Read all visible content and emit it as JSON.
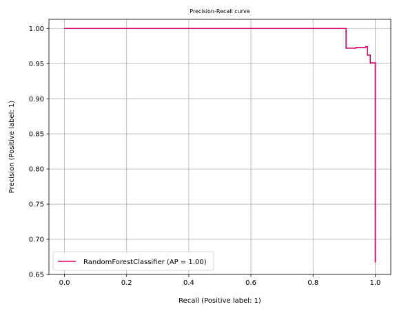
{
  "chart_data": {
    "type": "line",
    "title": "Precision-Recall curve",
    "xlabel": "Recall (Positive label: 1)",
    "ylabel": "Precision (Positive label: 1)",
    "xlim": [
      -0.05,
      1.05
    ],
    "ylim": [
      0.65,
      1.013
    ],
    "x_ticks": [
      0.0,
      0.2,
      0.4,
      0.6,
      0.8,
      1.0
    ],
    "x_tick_labels": [
      "0.0",
      "0.2",
      "0.4",
      "0.6",
      "0.8",
      "1.0"
    ],
    "y_ticks": [
      0.65,
      0.7,
      0.75,
      0.8,
      0.85,
      0.9,
      0.95,
      1.0
    ],
    "y_tick_labels": [
      "0.65",
      "0.70",
      "0.75",
      "0.80",
      "0.85",
      "0.90",
      "0.95",
      "1.00"
    ],
    "grid": true,
    "legend_position": "lower-left",
    "series": [
      {
        "name": "RandomForestClassifier (AP = 1.00)",
        "color": "#d6006f",
        "drawstyle": "steps-post",
        "points": [
          [
            0.0,
            1.0
          ],
          [
            0.906,
            1.0
          ],
          [
            0.906,
            0.972
          ],
          [
            0.938,
            0.972
          ],
          [
            0.938,
            0.973
          ],
          [
            0.969,
            0.973
          ],
          [
            0.969,
            0.974
          ],
          [
            0.969,
            0.974
          ],
          [
            0.975,
            0.974
          ],
          [
            0.975,
            0.962
          ],
          [
            0.984,
            0.962
          ],
          [
            0.984,
            0.951
          ],
          [
            1.0,
            0.951
          ],
          [
            1.0,
            0.951
          ],
          [
            1.0,
            0.667
          ]
        ]
      }
    ]
  }
}
